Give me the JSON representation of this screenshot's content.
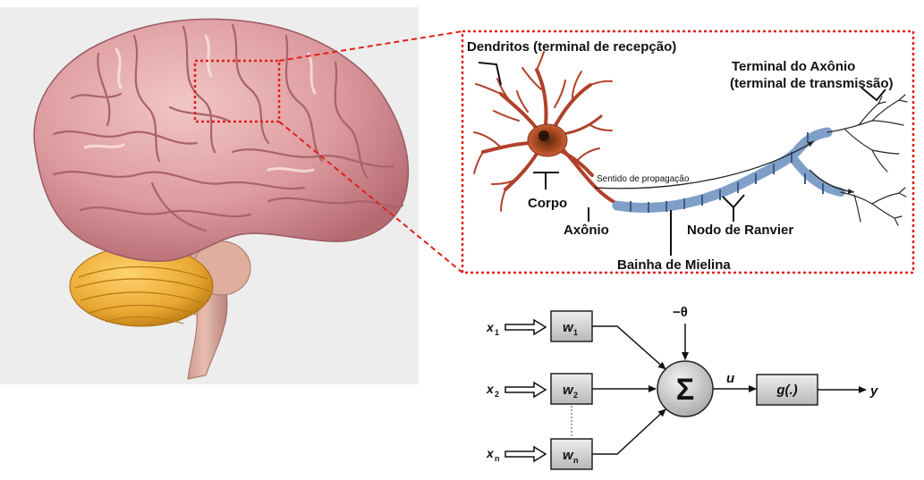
{
  "neuron": {
    "dendrites": "Dendritos (terminal de recepção)",
    "axon_terminal_line1": "Terminal do Axônio",
    "axon_terminal_line2": "(terminal de transmissão)",
    "propagation": "Sentido de propagação",
    "body": "Corpo",
    "axon": "Axônio",
    "ranvier": "Nodo de Ranvier",
    "myelin": "Bainha de Mielina"
  },
  "perceptron": {
    "theta": "−θ",
    "x": "x",
    "w": "w",
    "sub1": "1",
    "sub2": "2",
    "subn": "n",
    "sigma": "Σ",
    "u": "u",
    "g": "g(.)",
    "y": "y"
  },
  "colors": {
    "callout": "#e0211b",
    "neuron": "#b0412a",
    "myelin": "#7f9fc8",
    "brain": "#e0a7a9",
    "cerebellum": "#e8a630"
  }
}
